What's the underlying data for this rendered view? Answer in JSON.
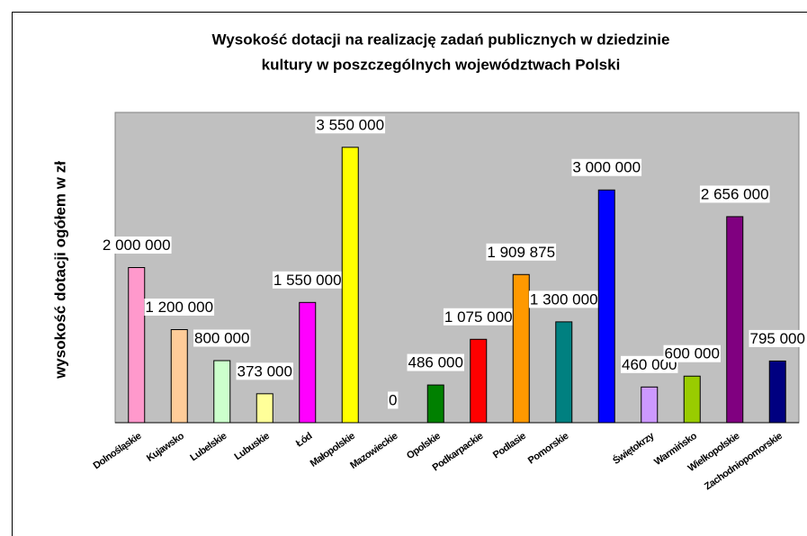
{
  "chart_data": {
    "type": "bar",
    "title": [
      "Wysokość dotacji na realizację zadań publicznych w dziedzinie",
      "kultury w poszczególnych województwach Polski"
    ],
    "y_label": "wysokość dotacji ogółem w zł",
    "categories": [
      "Dolnośląskie",
      "Kujawsko",
      "Lubelskie",
      "Lubuskie",
      "Łód",
      "Małopolskie",
      "Mazowieckie",
      "Opolskie",
      "Podkarpackie",
      "Podlasie",
      "Pomorskie",
      null,
      "Świętokrzy",
      "Warmińsko",
      "Wielkopolskie",
      "Zachodniopomorskie"
    ],
    "values": [
      2000000,
      1200000,
      800000,
      373000,
      1550000,
      3550000,
      0,
      486000,
      1075000,
      1909875,
      1300000,
      3000000,
      460000,
      600000,
      2656000,
      795000
    ],
    "value_labels": [
      "2 000 000",
      "1 200 000",
      "800 000",
      "373 000",
      "1 550 000",
      "3 550 000",
      "0",
      "486 000",
      "1 075 000",
      "1 909 875",
      "1 300 000",
      "3 000 000",
      "460 000",
      "600 000",
      "2 656 000",
      "795 000"
    ],
    "colors": [
      "#ff99cc",
      "#ffcc99",
      "#ccffcc",
      "#ffff99",
      "#ff00ff",
      "#ffff00",
      "#00ffff",
      "#008000",
      "#ff0000",
      "#ff9900",
      "#008080",
      "#0000ff",
      "#cc99ff",
      "#99cc00",
      "#800080",
      "#000080"
    ],
    "ylim": [
      0,
      4000000
    ]
  }
}
